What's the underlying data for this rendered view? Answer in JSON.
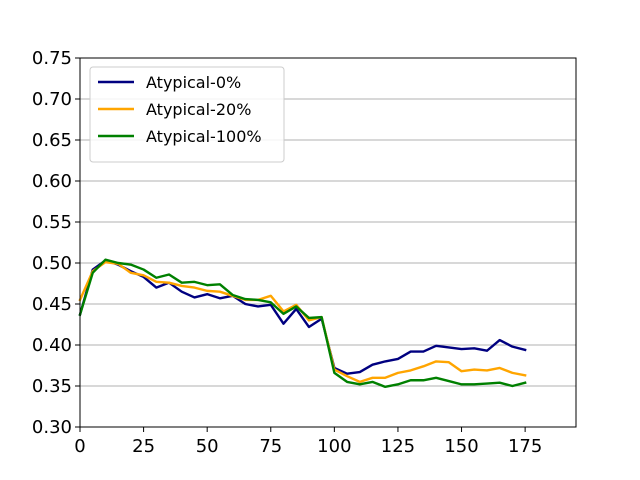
{
  "chart_data": {
    "type": "line",
    "title": "",
    "xlabel": "",
    "ylabel": "",
    "xlim": [
      0,
      195
    ],
    "ylim": [
      0.3,
      0.75
    ],
    "xticks": [
      0,
      25,
      50,
      75,
      100,
      125,
      150,
      175
    ],
    "yticks": [
      0.3,
      0.35,
      0.4,
      0.45,
      0.5,
      0.55,
      0.6,
      0.65,
      0.7,
      0.75
    ],
    "xtick_labels": [
      "0",
      "25",
      "50",
      "75",
      "100",
      "125",
      "150",
      "175"
    ],
    "ytick_labels": [
      "0.30",
      "0.35",
      "0.40",
      "0.45",
      "0.50",
      "0.55",
      "0.60",
      "0.65",
      "0.70",
      "0.75"
    ],
    "grid": "y",
    "legend_position": "top-left",
    "x": [
      0,
      5,
      10,
      15,
      20,
      25,
      30,
      35,
      40,
      45,
      50,
      55,
      60,
      65,
      70,
      75,
      80,
      85,
      90,
      95,
      100,
      105,
      110,
      115,
      120,
      125,
      130,
      135,
      140,
      145,
      150,
      155,
      160,
      165,
      170,
      175
    ],
    "series": [
      {
        "name": "Atypical-0%",
        "color": "#000080",
        "values": [
          0.437,
          0.492,
          0.503,
          0.498,
          0.49,
          0.483,
          0.47,
          0.476,
          0.465,
          0.458,
          0.462,
          0.457,
          0.46,
          0.45,
          0.447,
          0.449,
          0.426,
          0.444,
          0.422,
          0.432,
          0.372,
          0.365,
          0.367,
          0.376,
          0.38,
          0.383,
          0.392,
          0.392,
          0.399,
          0.397,
          0.395,
          0.396,
          0.393,
          0.406,
          0.398,
          0.394
        ]
      },
      {
        "name": "Atypical-20%",
        "color": "#ffa500",
        "values": [
          0.455,
          0.49,
          0.501,
          0.499,
          0.488,
          0.485,
          0.477,
          0.476,
          0.472,
          0.47,
          0.466,
          0.465,
          0.46,
          0.455,
          0.455,
          0.46,
          0.441,
          0.449,
          0.43,
          0.434,
          0.37,
          0.362,
          0.355,
          0.36,
          0.36,
          0.366,
          0.369,
          0.374,
          0.38,
          0.379,
          0.368,
          0.37,
          0.369,
          0.372,
          0.366,
          0.363
        ]
      },
      {
        "name": "Atypical-100%",
        "color": "#008000",
        "values": [
          0.437,
          0.488,
          0.504,
          0.5,
          0.498,
          0.492,
          0.482,
          0.486,
          0.476,
          0.477,
          0.473,
          0.474,
          0.461,
          0.456,
          0.455,
          0.452,
          0.438,
          0.447,
          0.433,
          0.434,
          0.366,
          0.355,
          0.352,
          0.355,
          0.349,
          0.352,
          0.357,
          0.357,
          0.36,
          0.356,
          0.352,
          0.352,
          0.353,
          0.354,
          0.35,
          0.354
        ]
      }
    ]
  }
}
